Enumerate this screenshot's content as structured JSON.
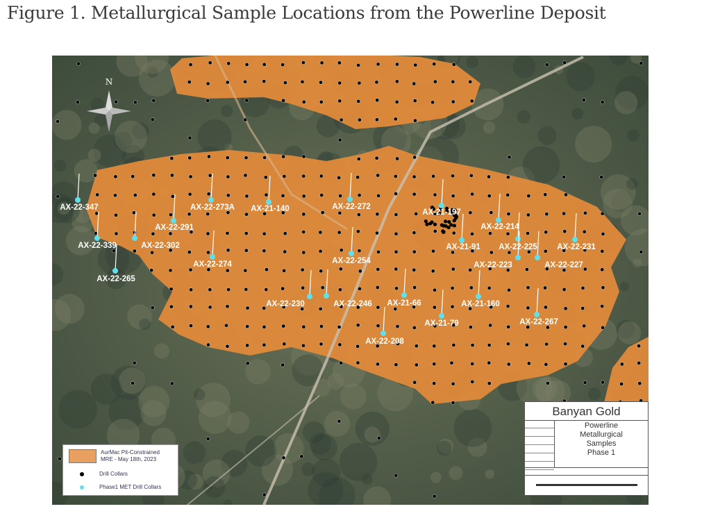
{
  "title": "Figure 1. Metallurgical Sample Locations from the Powerline Deposit",
  "map": {
    "north_arrow_label": "N",
    "colors": {
      "pit_shell": "#e08a3a",
      "drill_collar": "#000000",
      "met_collar": "#5fe0ea",
      "terrain": "#4a5a44"
    },
    "met_collars": [
      "AX-22-347",
      "AX-22-273A",
      "AX-21-140",
      "AX-22-272",
      "AX-21-197",
      "AX-22-291",
      "AX-22-214",
      "AX-22-339",
      "AX-22-302",
      "AX-21-91",
      "AX-22-225",
      "AX-22-231",
      "AX-22-274",
      "AX-22-254",
      "AX-22-223",
      "AX-22-227",
      "AX-22-265",
      "AX-22-230",
      "AX-22-246",
      "AX-21-66",
      "AX-21-160",
      "AX-21-79",
      "AX-22-267",
      "AX-22-208"
    ]
  },
  "legend": {
    "pit_label_line1": "AurMac Pit-Constrained",
    "pit_label_line2": "MRE - May 18th, 2023",
    "drill_collars": "Drill Collars",
    "met_collars": "Phase1 MET Drill Collars"
  },
  "title_block": {
    "company": "Banyan Gold",
    "project_title": [
      "Powerline",
      "Metallurgical",
      "Samples",
      "Phase 1"
    ]
  }
}
